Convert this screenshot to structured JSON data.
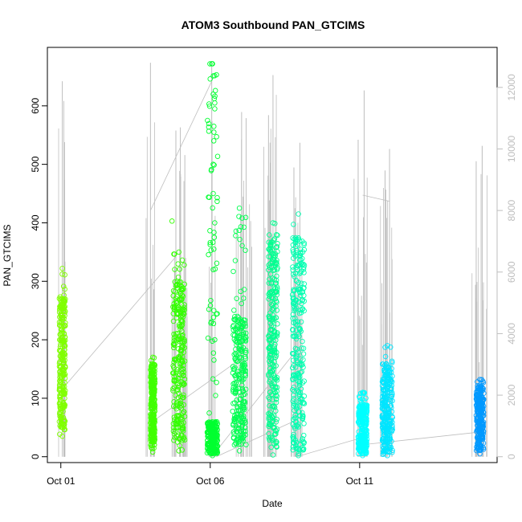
{
  "chart_data": {
    "type": "scatter",
    "title": "ATOM3 Southbound PAN_GTCIMS",
    "xlabel": "Date",
    "ylabel": "PAN_GTCIMS",
    "x_ticks": [
      "Oct 01",
      "Oct 06",
      "Oct 11"
    ],
    "x_tick_values": [
      0,
      5,
      10
    ],
    "xlim": [
      -0.45,
      14.6
    ],
    "ylim": [
      -10,
      700
    ],
    "y_ticks": [
      0,
      100,
      200,
      300,
      400,
      500,
      600
    ],
    "y2_ticks": [
      0,
      2000,
      4000,
      6000,
      8000,
      10000,
      12000
    ],
    "y2lim": [
      -190,
      13300
    ],
    "grid": false,
    "point_style": "open-circle",
    "color_gradient": [
      "#80ff00",
      "#33ff00",
      "#00ff60",
      "#00ffa0",
      "#00ffff",
      "#0099ff"
    ],
    "series": [
      {
        "x_range": [
          -0.05,
          0.15
        ],
        "y_range": [
          35,
          322
        ],
        "dense": [
          45,
          275
        ],
        "color": "#80ff00"
      },
      {
        "x_range": [
          3.0,
          3.15
        ],
        "y_range": [
          8,
          170
        ],
        "dense": [
          25,
          160
        ],
        "color": "#40ff00"
      },
      {
        "x_range": [
          3.75,
          4.15
        ],
        "y_range": [
          10,
          350
        ],
        "dense": [
          25,
          300
        ],
        "outliers": [
          [
            3.72,
            403
          ]
        ],
        "color": "#33ff00"
      },
      {
        "x_range": [
          4.9,
          5.25
        ],
        "y_range": [
          2,
          672
        ],
        "dense": [
          5,
          60
        ],
        "outliers": [
          [
            5.05,
            672
          ],
          [
            5.1,
            620
          ],
          [
            5.15,
            605
          ],
          [
            5.15,
            595
          ],
          [
            5.12,
            565
          ],
          [
            5.12,
            555
          ],
          [
            5.1,
            500
          ],
          [
            5.1,
            450
          ],
          [
            5.15,
            400
          ],
          [
            5.12,
            355
          ],
          [
            5.1,
            320
          ],
          [
            5.12,
            250
          ],
          [
            5.15,
            200
          ]
        ],
        "color": "#00ff30"
      },
      {
        "x_range": [
          5.75,
          6.2
        ],
        "y_range": [
          10,
          425
        ],
        "dense": [
          20,
          240
        ],
        "color": "#00ff50"
      },
      {
        "x_range": [
          6.95,
          7.25
        ],
        "y_range": [
          3,
          400
        ],
        "dense": [
          15,
          380
        ],
        "color": "#00ff90"
      },
      {
        "x_range": [
          7.75,
          8.15
        ],
        "y_range": [
          2,
          415
        ],
        "dense": [
          10,
          375
        ],
        "color": "#00ffb0"
      },
      {
        "x_range": [
          9.95,
          10.25
        ],
        "y_range": [
          2,
          110
        ],
        "dense": [
          5,
          90
        ],
        "color": "#00ffff"
      },
      {
        "x_range": [
          10.75,
          11.1
        ],
        "y_range": [
          2,
          190
        ],
        "dense": [
          5,
          160
        ],
        "color": "#00e5ff"
      },
      {
        "x_range": [
          13.9,
          14.15
        ],
        "y_range": [
          5,
          132
        ],
        "dense": [
          10,
          120
        ],
        "color": "#0099ff"
      }
    ],
    "secondary_series": {
      "name": "",
      "color": "#bebebe",
      "spikes": [
        {
          "x": 0.05,
          "y": 12200
        },
        {
          "x": 3.0,
          "y": 12800
        },
        {
          "x": 3.85,
          "y": 10600
        },
        {
          "x": 4.0,
          "y": 10700
        },
        {
          "x": 4.15,
          "y": 9800
        },
        {
          "x": 5.05,
          "y": 12800
        },
        {
          "x": 6.05,
          "y": 11200
        },
        {
          "x": 6.2,
          "y": 11000
        },
        {
          "x": 6.95,
          "y": 11100
        },
        {
          "x": 7.1,
          "y": 12400
        },
        {
          "x": 7.8,
          "y": 9400
        },
        {
          "x": 8.0,
          "y": 10200
        },
        {
          "x": 9.95,
          "y": 10300
        },
        {
          "x": 10.15,
          "y": 11900
        },
        {
          "x": 10.85,
          "y": 9300
        },
        {
          "x": 11.0,
          "y": 10000
        },
        {
          "x": 13.9,
          "y": 9600
        },
        {
          "x": 14.1,
          "y": 10100
        }
      ]
    }
  }
}
